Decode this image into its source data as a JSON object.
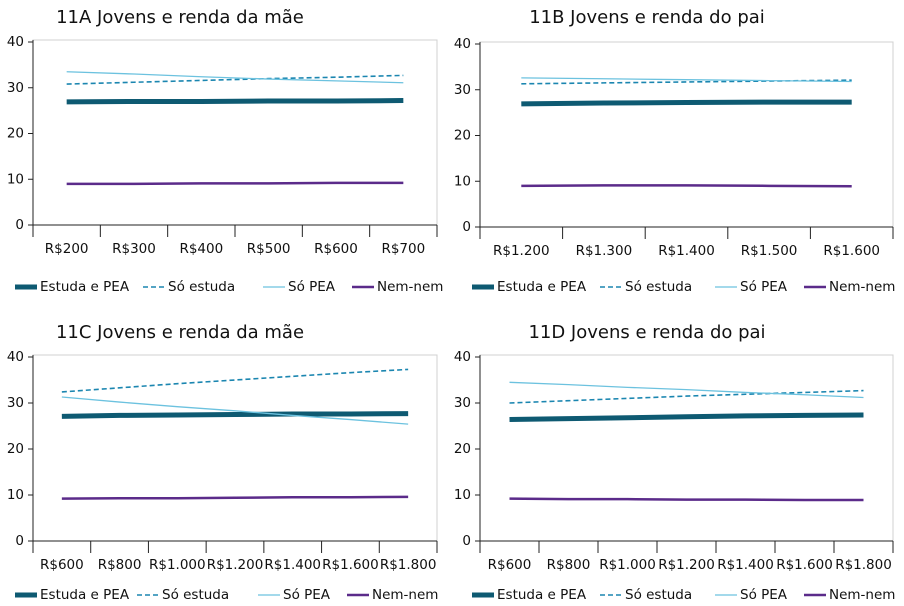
{
  "chart_data": [
    {
      "type": "line",
      "title": "11A Jovens e renda da mãe",
      "categories": [
        "R$200",
        "R$300",
        "R$400",
        "R$500",
        "R$600",
        "R$700"
      ],
      "ylim": [
        0,
        40
      ],
      "yticks": [
        0,
        10,
        20,
        30,
        40
      ],
      "series": [
        {
          "name": "Estuda e PEA",
          "color": "#0e5a72",
          "width": 5,
          "dash": false,
          "values": [
            26.9,
            27,
            27,
            27.1,
            27.1,
            27.2
          ]
        },
        {
          "name": "Só estuda",
          "color": "#1b86b0",
          "width": 1.6,
          "dash": true,
          "values": [
            30.8,
            31.2,
            31.6,
            32,
            32.3,
            32.7
          ]
        },
        {
          "name": "Só PEA",
          "color": "#6cc2df",
          "width": 1.3,
          "dash": false,
          "values": [
            33.5,
            33,
            32.4,
            31.9,
            31.5,
            31.1
          ]
        },
        {
          "name": "Nem-nem",
          "color": "#5b2b8a",
          "width": 2.5,
          "dash": false,
          "values": [
            9,
            9,
            9.1,
            9.1,
            9.2,
            9.2
          ]
        }
      ]
    },
    {
      "type": "line",
      "title": "11B Jovens e renda do pai",
      "categories": [
        "R$1.200",
        "R$1.300",
        "R$1.400",
        "R$1.500",
        "R$1.600"
      ],
      "ylim": [
        0,
        40
      ],
      "yticks": [
        0,
        10,
        20,
        30,
        40
      ],
      "series": [
        {
          "name": "Estuda e PEA",
          "color": "#0e5a72",
          "width": 5,
          "dash": false,
          "values": [
            26.9,
            27.1,
            27.2,
            27.3,
            27.3
          ]
        },
        {
          "name": "Só estuda",
          "color": "#1b86b0",
          "width": 1.6,
          "dash": true,
          "values": [
            31.3,
            31.5,
            31.7,
            31.9,
            32.1
          ]
        },
        {
          "name": "Só PEA",
          "color": "#6cc2df",
          "width": 1.3,
          "dash": false,
          "values": [
            32.6,
            32.4,
            32.2,
            32,
            31.8
          ]
        },
        {
          "name": "Nem-nem",
          "color": "#5b2b8a",
          "width": 2.5,
          "dash": false,
          "values": [
            9,
            9.1,
            9.1,
            9,
            8.9
          ]
        }
      ]
    },
    {
      "type": "line",
      "title": "11C Jovens e renda da mãe",
      "categories": [
        "R$600",
        "R$800",
        "R$1.000",
        "R$1.200",
        "R$1.400",
        "R$1.600",
        "R$1.800"
      ],
      "ylim": [
        0,
        40
      ],
      "yticks": [
        0,
        10,
        20,
        30,
        40
      ],
      "series": [
        {
          "name": "Estuda e PEA",
          "color": "#0e5a72",
          "width": 5,
          "dash": false,
          "values": [
            27.1,
            27.3,
            27.4,
            27.5,
            27.6,
            27.6,
            27.7
          ]
        },
        {
          "name": "Só estuda",
          "color": "#1b86b0",
          "width": 1.6,
          "dash": true,
          "values": [
            32.4,
            33.3,
            34.2,
            35,
            35.8,
            36.6,
            37.3
          ]
        },
        {
          "name": "Só PEA",
          "color": "#6cc2df",
          "width": 1.3,
          "dash": false,
          "values": [
            31.3,
            30.2,
            29.2,
            28.3,
            27.3,
            26.4,
            25.4
          ]
        },
        {
          "name": "Nem-nem",
          "color": "#5b2b8a",
          "width": 2.5,
          "dash": false,
          "values": [
            9.2,
            9.3,
            9.3,
            9.4,
            9.5,
            9.5,
            9.6
          ]
        }
      ]
    },
    {
      "type": "line",
      "title": "11D Jovens e renda do pai",
      "categories": [
        "R$600",
        "R$800",
        "R$1.000",
        "R$1.200",
        "R$1.400",
        "R$1.600",
        "R$1.800"
      ],
      "ylim": [
        0,
        40
      ],
      "yticks": [
        0,
        10,
        20,
        30,
        40
      ],
      "series": [
        {
          "name": "Estuda e PEA",
          "color": "#0e5a72",
          "width": 5,
          "dash": false,
          "values": [
            26.4,
            26.6,
            26.8,
            27,
            27.2,
            27.3,
            27.4
          ]
        },
        {
          "name": "Só estuda",
          "color": "#1b86b0",
          "width": 1.6,
          "dash": true,
          "values": [
            30,
            30.5,
            31,
            31.5,
            31.9,
            32.3,
            32.7
          ]
        },
        {
          "name": "Só PEA",
          "color": "#6cc2df",
          "width": 1.3,
          "dash": false,
          "values": [
            34.5,
            34,
            33.4,
            32.9,
            32.3,
            31.8,
            31.2
          ]
        },
        {
          "name": "Nem-nem",
          "color": "#5b2b8a",
          "width": 2.5,
          "dash": false,
          "values": [
            9.2,
            9.1,
            9.1,
            9,
            9,
            8.9,
            8.9
          ]
        }
      ]
    }
  ]
}
